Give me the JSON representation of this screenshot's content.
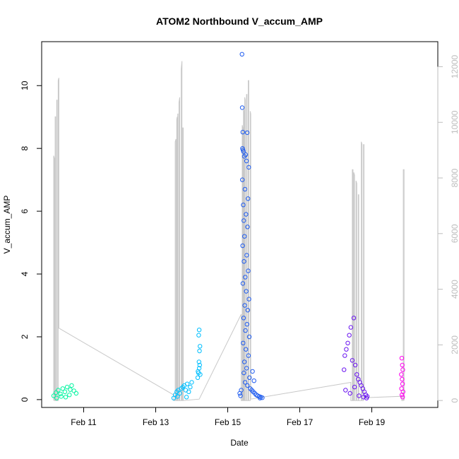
{
  "chart_data": {
    "type": "scatter",
    "title": "ATOM2 Northbound V_accum_AMP",
    "xlabel": "Date",
    "ylabel": "V_accum_AMP",
    "x_range": [
      "2024-02-09T20:00",
      "2024-02-20T20:00"
    ],
    "x_ticks": [
      {
        "date": "2024-02-11",
        "label": "Feb 11"
      },
      {
        "date": "2024-02-13",
        "label": "Feb 13"
      },
      {
        "date": "2024-02-15",
        "label": "Feb 15"
      },
      {
        "date": "2024-02-17",
        "label": "Feb 17"
      },
      {
        "date": "2024-02-19",
        "label": "Feb 19"
      }
    ],
    "ylim": [
      -0.25,
      11.4
    ],
    "y_ticks": [
      0,
      2,
      4,
      6,
      8,
      10
    ],
    "y2lim": [
      -250,
      12900
    ],
    "y2_ticks": [
      0,
      2000,
      4000,
      6000,
      8000,
      10000,
      12000
    ],
    "grid": false,
    "series": [
      {
        "color": "#00f5a0",
        "points": [
          [
            "2024-02-10T04:00",
            0.12
          ],
          [
            "2024-02-10T05:30",
            0.22
          ],
          [
            "2024-02-10T07:00",
            0.3
          ],
          [
            "2024-02-10T08:30",
            0.18
          ],
          [
            "2024-02-10T10:00",
            0.35
          ],
          [
            "2024-02-10T11:30",
            0.25
          ],
          [
            "2024-02-10T13:00",
            0.4
          ],
          [
            "2024-02-10T14:30",
            0.15
          ],
          [
            "2024-02-10T16:00",
            0.45
          ],
          [
            "2024-02-10T17:30",
            0.28
          ],
          [
            "2024-02-10T19:00",
            0.2
          ],
          [
            "2024-02-10T06:00",
            0.05
          ],
          [
            "2024-02-10T09:00",
            0.1
          ],
          [
            "2024-02-10T12:00",
            0.08
          ],
          [
            "2024-02-10T15:00",
            0.32
          ]
        ]
      },
      {
        "color": "#00bfff",
        "points": [
          [
            "2024-02-13T12:00",
            0.05
          ],
          [
            "2024-02-13T13:00",
            0.15
          ],
          [
            "2024-02-13T14:00",
            0.25
          ],
          [
            "2024-02-13T15:00",
            0.3
          ],
          [
            "2024-02-13T16:00",
            0.2
          ],
          [
            "2024-02-13T17:00",
            0.35
          ],
          [
            "2024-02-13T18:00",
            0.4
          ],
          [
            "2024-02-13T19:00",
            0.45
          ],
          [
            "2024-02-13T20:00",
            0.3
          ],
          [
            "2024-02-13T21:00",
            0.5
          ],
          [
            "2024-02-13T22:00",
            0.25
          ],
          [
            "2024-02-13T23:00",
            0.4
          ],
          [
            "2024-02-14T00:00",
            0.55
          ],
          [
            "2024-02-13T14:30",
            0.1
          ],
          [
            "2024-02-13T20:30",
            0.08
          ],
          [
            "2024-02-14T04:00",
            0.7
          ],
          [
            "2024-02-14T04:30",
            0.85
          ],
          [
            "2024-02-14T05:00",
            1.0
          ],
          [
            "2024-02-14T05:20",
            1.1
          ],
          [
            "2024-02-14T04:10",
            0.9
          ],
          [
            "2024-02-14T05:40",
            0.8
          ],
          [
            "2024-02-14T04:50",
            1.2
          ],
          [
            "2024-02-14T05:10",
            1.55
          ],
          [
            "2024-02-14T05:30",
            1.7
          ],
          [
            "2024-02-14T04:40",
            2.05
          ],
          [
            "2024-02-14T05:00",
            2.22
          ]
        ]
      },
      {
        "color": "#1f5cf0",
        "points": [
          [
            "2024-02-15T09:30",
            11.0
          ],
          [
            "2024-02-15T09:40",
            9.3
          ],
          [
            "2024-02-15T10:00",
            8.52
          ],
          [
            "2024-02-15T13:00",
            8.5
          ],
          [
            "2024-02-15T09:50",
            8.0
          ],
          [
            "2024-02-15T10:10",
            7.95
          ],
          [
            "2024-02-15T10:30",
            7.9
          ],
          [
            "2024-02-15T12:00",
            7.8
          ],
          [
            "2024-02-15T11:00",
            7.75
          ],
          [
            "2024-02-15T12:30",
            7.6
          ],
          [
            "2024-02-15T14:00",
            7.4
          ],
          [
            "2024-02-15T09:45",
            7.0
          ],
          [
            "2024-02-15T11:30",
            6.7
          ],
          [
            "2024-02-15T13:30",
            6.4
          ],
          [
            "2024-02-15T10:20",
            6.2
          ],
          [
            "2024-02-15T12:10",
            5.9
          ],
          [
            "2024-02-15T10:40",
            5.7
          ],
          [
            "2024-02-15T13:10",
            5.5
          ],
          [
            "2024-02-15T11:10",
            5.2
          ],
          [
            "2024-02-15T09:55",
            4.9
          ],
          [
            "2024-02-15T12:40",
            4.6
          ],
          [
            "2024-02-15T10:50",
            4.4
          ],
          [
            "2024-02-15T13:40",
            4.1
          ],
          [
            "2024-02-15T11:40",
            3.9
          ],
          [
            "2024-02-15T10:05",
            3.7
          ],
          [
            "2024-02-15T12:20",
            3.45
          ],
          [
            "2024-02-15T14:10",
            3.2
          ],
          [
            "2024-02-15T11:20",
            3.0
          ],
          [
            "2024-02-15T13:20",
            2.85
          ],
          [
            "2024-02-15T10:35",
            2.6
          ],
          [
            "2024-02-15T12:50",
            2.4
          ],
          [
            "2024-02-15T11:50",
            2.2
          ],
          [
            "2024-02-15T14:20",
            2.0
          ],
          [
            "2024-02-15T10:15",
            1.8
          ],
          [
            "2024-02-15T12:05",
            1.6
          ],
          [
            "2024-02-15T13:50",
            1.4
          ],
          [
            "2024-02-15T11:05",
            1.2
          ],
          [
            "2024-02-15T12:35",
            1.0
          ],
          [
            "2024-02-15T10:45",
            0.85
          ],
          [
            "2024-02-15T14:30",
            0.7
          ],
          [
            "2024-02-15T11:35",
            0.55
          ],
          [
            "2024-02-15T13:05",
            0.45
          ],
          [
            "2024-02-15T15:00",
            0.35
          ],
          [
            "2024-02-15T16:00",
            0.3
          ],
          [
            "2024-02-15T17:00",
            0.25
          ],
          [
            "2024-02-15T18:00",
            0.2
          ],
          [
            "2024-02-15T19:00",
            0.15
          ],
          [
            "2024-02-15T20:00",
            0.12
          ],
          [
            "2024-02-15T21:00",
            0.1
          ],
          [
            "2024-02-15T22:00",
            0.08
          ],
          [
            "2024-02-15T23:00",
            0.06
          ],
          [
            "2024-02-15T16:30",
            0.9
          ],
          [
            "2024-02-15T17:30",
            0.6
          ],
          [
            "2024-02-15T08:00",
            0.2
          ],
          [
            "2024-02-15T08:30",
            0.12
          ],
          [
            "2024-02-15T09:00",
            0.3
          ],
          [
            "2024-02-15T21:30",
            0.05
          ]
        ]
      },
      {
        "color": "#6a14f0",
        "points": [
          [
            "2024-02-18T12:00",
            2.6
          ],
          [
            "2024-02-18T10:00",
            2.3
          ],
          [
            "2024-02-18T09:00",
            2.05
          ],
          [
            "2024-02-18T08:00",
            1.8
          ],
          [
            "2024-02-18T07:00",
            1.6
          ],
          [
            "2024-02-18T06:00",
            1.4
          ],
          [
            "2024-02-18T11:00",
            1.25
          ],
          [
            "2024-02-18T13:00",
            1.1
          ],
          [
            "2024-02-18T05:30",
            0.95
          ],
          [
            "2024-02-18T14:00",
            0.8
          ],
          [
            "2024-02-18T15:00",
            0.65
          ],
          [
            "2024-02-18T16:00",
            0.55
          ],
          [
            "2024-02-18T17:00",
            0.45
          ],
          [
            "2024-02-18T18:00",
            0.35
          ],
          [
            "2024-02-18T19:00",
            0.25
          ],
          [
            "2024-02-18T20:00",
            0.15
          ],
          [
            "2024-02-18T21:00",
            0.1
          ],
          [
            "2024-02-18T06:30",
            0.3
          ],
          [
            "2024-02-18T09:30",
            0.2
          ],
          [
            "2024-02-18T12:30",
            0.4
          ],
          [
            "2024-02-18T15:30",
            0.12
          ],
          [
            "2024-02-18T18:30",
            0.08
          ],
          [
            "2024-02-18T20:30",
            0.05
          ]
        ]
      },
      {
        "color": "#ff00f0",
        "points": [
          [
            "2024-02-19T20:00",
            1.32
          ],
          [
            "2024-02-19T20:20",
            1.1
          ],
          [
            "2024-02-19T20:40",
            0.95
          ],
          [
            "2024-02-19T19:40",
            0.8
          ],
          [
            "2024-02-19T20:10",
            0.65
          ],
          [
            "2024-02-19T20:30",
            0.5
          ],
          [
            "2024-02-19T19:50",
            0.35
          ],
          [
            "2024-02-19T20:50",
            0.25
          ],
          [
            "2024-02-19T20:05",
            0.15
          ],
          [
            "2024-02-19T20:35",
            0.08
          ]
        ]
      }
    ],
    "line_series": {
      "axis": "right",
      "color": "#c8c8c8",
      "points": [
        [
          "2024-02-10T04:00",
          0
        ],
        [
          "2024-02-10T04:00",
          8800
        ],
        [
          "2024-02-10T04:30",
          8700
        ],
        [
          "2024-02-10T04:30",
          0
        ],
        [
          "2024-02-10T05:00",
          0
        ],
        [
          "2024-02-10T05:00",
          10200
        ],
        [
          "2024-02-10T05:20",
          10200
        ],
        [
          "2024-02-10T05:20",
          0
        ],
        [
          "2024-02-10T06:00",
          0
        ],
        [
          "2024-02-10T06:00",
          10800
        ],
        [
          "2024-02-10T06:20",
          10800
        ],
        [
          "2024-02-10T06:20",
          0
        ],
        [
          "2024-02-10T07:00",
          0
        ],
        [
          "2024-02-10T07:00",
          11500
        ],
        [
          "2024-02-10T07:30",
          11600
        ],
        [
          "2024-02-10T07:30",
          2600
        ],
        [
          "2024-02-13T12:00",
          200
        ],
        [
          "2024-02-13T12:00",
          0
        ],
        [
          "2024-02-13T13:00",
          0
        ],
        [
          "2024-02-13T13:00",
          9300
        ],
        [
          "2024-02-13T13:30",
          9400
        ],
        [
          "2024-02-13T13:30",
          0
        ],
        [
          "2024-02-13T14:00",
          0
        ],
        [
          "2024-02-13T14:00",
          10100
        ],
        [
          "2024-02-13T14:20",
          10200
        ],
        [
          "2024-02-13T14:20",
          0
        ],
        [
          "2024-02-13T14:40",
          0
        ],
        [
          "2024-02-13T14:40",
          10300
        ],
        [
          "2024-02-13T14:50",
          10300
        ],
        [
          "2024-02-13T14:50",
          0
        ],
        [
          "2024-02-13T15:30",
          0
        ],
        [
          "2024-02-13T15:30",
          10700
        ],
        [
          "2024-02-13T16:00",
          10900
        ],
        [
          "2024-02-13T16:00",
          0
        ],
        [
          "2024-02-13T17:00",
          0
        ],
        [
          "2024-02-13T17:00",
          11900
        ],
        [
          "2024-02-13T17:30",
          12200
        ],
        [
          "2024-02-13T17:30",
          0
        ],
        [
          "2024-02-13T18:00",
          0
        ],
        [
          "2024-02-13T18:00",
          9800
        ],
        [
          "2024-02-13T18:20",
          9800
        ],
        [
          "2024-02-13T18:20",
          0
        ],
        [
          "2024-02-14T05:00",
          50
        ],
        [
          "2024-02-15T09:00",
          3100
        ],
        [
          "2024-02-15T09:00",
          0
        ],
        [
          "2024-02-15T09:40",
          0
        ],
        [
          "2024-02-15T09:40",
          9900
        ],
        [
          "2024-02-15T10:00",
          9800
        ],
        [
          "2024-02-15T10:00",
          0
        ],
        [
          "2024-02-15T10:30",
          0
        ],
        [
          "2024-02-15T10:30",
          10500
        ],
        [
          "2024-02-15T10:50",
          10400
        ],
        [
          "2024-02-15T10:50",
          0
        ],
        [
          "2024-02-15T11:20",
          0
        ],
        [
          "2024-02-15T11:20",
          10900
        ],
        [
          "2024-02-15T11:40",
          10800
        ],
        [
          "2024-02-15T11:40",
          0
        ],
        [
          "2024-02-15T12:30",
          0
        ],
        [
          "2024-02-15T12:30",
          11000
        ],
        [
          "2024-02-15T12:50",
          11000
        ],
        [
          "2024-02-15T12:50",
          0
        ],
        [
          "2024-02-15T13:40",
          0
        ],
        [
          "2024-02-15T13:40",
          11500
        ],
        [
          "2024-02-15T14:00",
          11500
        ],
        [
          "2024-02-15T14:00",
          0
        ],
        [
          "2024-02-15T15:00",
          0
        ],
        [
          "2024-02-15T15:00",
          10400
        ],
        [
          "2024-02-15T15:20",
          10300
        ],
        [
          "2024-02-15T15:20",
          50
        ],
        [
          "2024-02-18T10:00",
          650
        ],
        [
          "2024-02-18T10:00",
          0
        ],
        [
          "2024-02-18T11:00",
          0
        ],
        [
          "2024-02-18T11:00",
          8300
        ],
        [
          "2024-02-18T11:30",
          8300
        ],
        [
          "2024-02-18T11:30",
          0
        ],
        [
          "2024-02-18T12:00",
          0
        ],
        [
          "2024-02-18T12:00",
          8200
        ],
        [
          "2024-02-18T12:30",
          8100
        ],
        [
          "2024-02-18T12:30",
          0
        ],
        [
          "2024-02-18T13:30",
          0
        ],
        [
          "2024-02-18T13:30",
          7900
        ],
        [
          "2024-02-18T14:00",
          7800
        ],
        [
          "2024-02-18T14:00",
          0
        ],
        [
          "2024-02-18T15:00",
          0
        ],
        [
          "2024-02-18T15:00",
          7400
        ],
        [
          "2024-02-18T15:20",
          7400
        ],
        [
          "2024-02-18T15:20",
          0
        ],
        [
          "2024-02-18T17:00",
          0
        ],
        [
          "2024-02-18T17:00",
          9300
        ],
        [
          "2024-02-18T17:30",
          9200
        ],
        [
          "2024-02-18T17:30",
          0
        ],
        [
          "2024-02-18T18:30",
          0
        ],
        [
          "2024-02-18T18:30",
          9200
        ],
        [
          "2024-02-18T18:50",
          9200
        ],
        [
          "2024-02-18T18:50",
          100
        ],
        [
          "2024-02-19T20:00",
          150
        ],
        [
          "2024-02-19T20:00",
          0
        ],
        [
          "2024-02-19T21:00",
          0
        ],
        [
          "2024-02-19T21:00",
          8300
        ],
        [
          "2024-02-19T21:30",
          8300
        ],
        [
          "2024-02-19T21:30",
          0
        ]
      ]
    }
  }
}
